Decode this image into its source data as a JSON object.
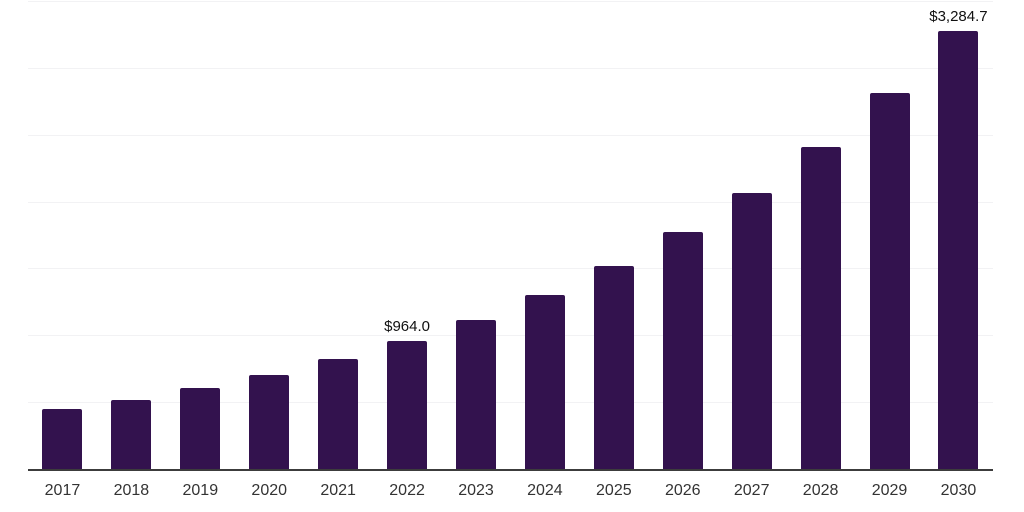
{
  "chart_data": {
    "type": "bar",
    "title": "",
    "xlabel": "",
    "ylabel": "",
    "categories": [
      "2017",
      "2018",
      "2019",
      "2020",
      "2021",
      "2022",
      "2023",
      "2024",
      "2025",
      "2026",
      "2027",
      "2028",
      "2029",
      "2030"
    ],
    "values": [
      455,
      522,
      610,
      711,
      827,
      964.0,
      1124,
      1310,
      1527,
      1780,
      2075,
      2419,
      2820,
      3284.7
    ],
    "data_labels": [
      "",
      "",
      "",
      "",
      "",
      "$964.0",
      "",
      "",
      "",
      "",
      "",
      "",
      "",
      "$3,284.7"
    ],
    "ylim": [
      0,
      3500
    ],
    "gridline_step": 500,
    "grid": "horizontal-only",
    "legend_position": "none",
    "bar_color": "#33124e",
    "gridline_color": "#f2f2f4",
    "axis_line_color": "#3c3c3c",
    "tick_label_color": "#333333",
    "value_label_color": "#111111"
  }
}
